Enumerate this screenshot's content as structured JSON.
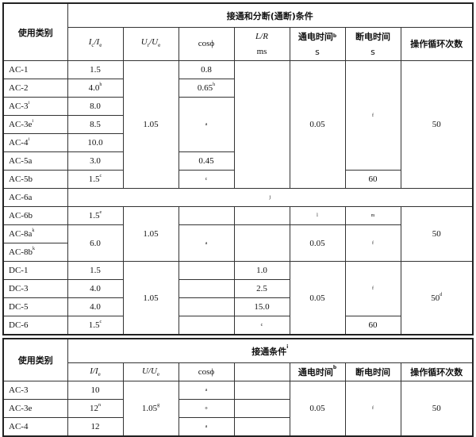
{
  "table1": {
    "category_header": "使用类别",
    "group_header": "接通和分断(通断)条件",
    "col_ic": {
      "a": "I",
      "s1": "c",
      "b": "/I",
      "s2": "e"
    },
    "col_ur": {
      "a": "U",
      "s1": "r",
      "b": "/U",
      "s2": "e"
    },
    "col_cos": "cosϕ",
    "col_lr": {
      "label": "L/R",
      "unit": "ms"
    },
    "col_on": {
      "label": "通电时间",
      "sup": "b",
      "unit": "s"
    },
    "col_off": {
      "label": "断电时间",
      "unit": "s"
    },
    "col_cycles": "操作循环次数",
    "rows": {
      "ac1": {
        "cat": "AC-1",
        "ic": "1.5",
        "cos": "0.8"
      },
      "ac2": {
        "cat": "AC-2",
        "ic": "4.0",
        "ic_sup": "h",
        "cos": "0.65",
        "cos_sup": "h"
      },
      "ac3": {
        "cat": "AC-3",
        "cat_sup": "i",
        "ic": "8.0",
        "cos": "a"
      },
      "ac3e": {
        "cat": "AC-3e",
        "cat_sup": "i",
        "ic": "8.5"
      },
      "ac4": {
        "cat": "AC-4",
        "cat_sup": "i",
        "ic": "10.0"
      },
      "ac5a": {
        "cat": "AC-5a",
        "ic": "3.0",
        "cos": "0.45"
      },
      "ac5b": {
        "cat": "AC-5b",
        "ic": "1.5",
        "ic_sup": "c",
        "cos": "c",
        "off": "60"
      },
      "ac6a": {
        "cat": "AC-6a",
        "note": "j"
      },
      "ac6b": {
        "cat": "AC-6b",
        "ic": "1.5",
        "ic_sup": "e",
        "on": "l",
        "off": "m"
      },
      "ac8a": {
        "cat": "AC-8a",
        "cat_sup": "k"
      },
      "ac8b": {
        "cat": "AC-8b",
        "cat_sup": "k"
      },
      "dc1": {
        "cat": "DC-1",
        "ic": "1.5",
        "lr": "1.0"
      },
      "dc3": {
        "cat": "DC-3",
        "ic": "4.0",
        "lr": "2.5"
      },
      "dc5": {
        "cat": "DC-5",
        "ic": "4.0",
        "lr": "15.0"
      },
      "dc6": {
        "cat": "DC-6",
        "ic": "1.5",
        "ic_sup": "c",
        "lr": "c",
        "off": "60"
      }
    },
    "ac_group": {
      "ur": "1.05",
      "on": "0.05",
      "off": "f",
      "cycles": "50"
    },
    "ac8_group": {
      "ic": "6.0",
      "ur": "1.05",
      "cos": "a",
      "on": "0.05",
      "off": "f",
      "cycles": "50"
    },
    "dc_group": {
      "ur": "1.05",
      "on": "0.05",
      "off": "f",
      "cycles": "50",
      "cycles_sup": "d"
    }
  },
  "table2": {
    "category_header": "使用类别",
    "group_header": "接通条件",
    "group_sup": "i",
    "col_i": {
      "a": "I",
      "b": "/I",
      "s2": "e"
    },
    "col_u": {
      "a": "U",
      "b": "/U",
      "s2": "e"
    },
    "col_cos": "cosϕ",
    "col_on": {
      "label": "通电时间",
      "sup": "b"
    },
    "col_off": "断电时间",
    "col_cycles": "操作循环次数",
    "rows": {
      "ac3": {
        "cat": "AC-3",
        "i": "10",
        "cos": "a"
      },
      "ac3e": {
        "cat": "AC-3e",
        "i": "12",
        "i_sup": "n",
        "cos": "o"
      },
      "ac4": {
        "cat": "AC-4",
        "i": "12",
        "cos": "a"
      }
    },
    "group": {
      "u": "1.05",
      "u_sup": "g",
      "on": "0.05",
      "off": "f",
      "cycles": "50"
    }
  }
}
